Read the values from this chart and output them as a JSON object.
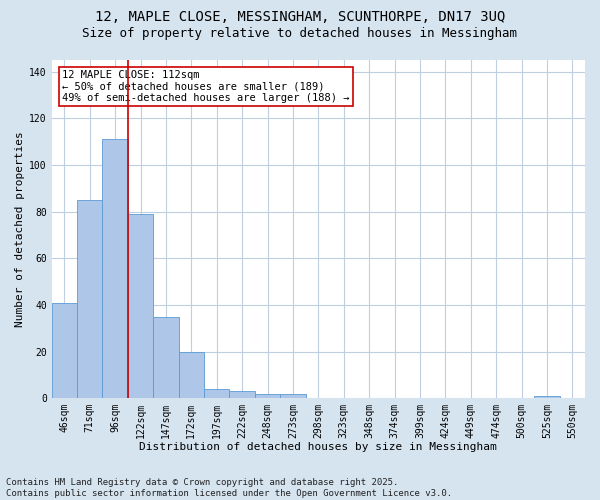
{
  "title_line1": "12, MAPLE CLOSE, MESSINGHAM, SCUNTHORPE, DN17 3UQ",
  "title_line2": "Size of property relative to detached houses in Messingham",
  "xlabel": "Distribution of detached houses by size in Messingham",
  "ylabel": "Number of detached properties",
  "categories": [
    "46sqm",
    "71sqm",
    "96sqm",
    "122sqm",
    "147sqm",
    "172sqm",
    "197sqm",
    "222sqm",
    "248sqm",
    "273sqm",
    "298sqm",
    "323sqm",
    "348sqm",
    "374sqm",
    "399sqm",
    "424sqm",
    "449sqm",
    "474sqm",
    "500sqm",
    "525sqm",
    "550sqm"
  ],
  "values": [
    41,
    85,
    111,
    79,
    35,
    20,
    4,
    3,
    2,
    2,
    0,
    0,
    0,
    0,
    0,
    0,
    0,
    0,
    0,
    1,
    0
  ],
  "bar_color": "#aec6e8",
  "bar_edge_color": "#5b9bd5",
  "vline_x": 2.5,
  "vline_color": "#cc0000",
  "annotation_text": "12 MAPLE CLOSE: 112sqm\n← 50% of detached houses are smaller (189)\n49% of semi-detached houses are larger (188) →",
  "annotation_box_color": "#ffffff",
  "annotation_box_edge": "#cc0000",
  "ylim": [
    0,
    145
  ],
  "yticks": [
    0,
    20,
    40,
    60,
    80,
    100,
    120,
    140
  ],
  "fig_bg_color": "#d6e4f0",
  "plot_bg_color": "#ffffff",
  "footer_line1": "Contains HM Land Registry data © Crown copyright and database right 2025.",
  "footer_line2": "Contains public sector information licensed under the Open Government Licence v3.0.",
  "title_fontsize": 10,
  "subtitle_fontsize": 9,
  "axis_label_fontsize": 8,
  "tick_fontsize": 7,
  "annotation_fontsize": 7.5,
  "footer_fontsize": 6.5
}
